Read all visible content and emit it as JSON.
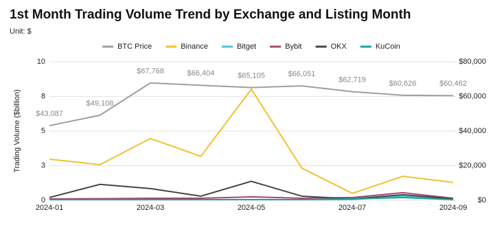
{
  "chart_data": {
    "type": "line",
    "title": "1st Month Trading Volume Trend by Exchange and Listing Month",
    "subtitle": "Unit: $",
    "y_label": "Trading Volume ($billion)",
    "categories": [
      "2024-01",
      null,
      "2024-03",
      null,
      "2024-05",
      null,
      "2024-07",
      null,
      "2024-09"
    ],
    "ylim": [
      0,
      10
    ],
    "yticks": [
      0,
      {
        "value": 2.5,
        "label": "3"
      },
      5,
      {
        "value": 7.5,
        "label": "8"
      },
      10
    ],
    "y2lim": [
      0,
      80000
    ],
    "y2ticks": [
      {
        "value": 0,
        "label": "$0"
      },
      {
        "value": 20000,
        "label": "$20,000"
      },
      {
        "value": 40000,
        "label": "$40,000"
      },
      {
        "value": 60000,
        "label": "$60,000"
      },
      {
        "value": 80000,
        "label": "$80,000"
      }
    ],
    "grid": true,
    "legend": "top",
    "series": [
      {
        "name": "BTC Price",
        "color": "#9e9e9e",
        "axis": "y2",
        "values": [
          43087,
          49108,
          67768,
          66404,
          65105,
          66051,
          62719,
          60626,
          60462
        ],
        "value_labels": [
          "$43,087",
          "$49,108",
          "$67,768",
          "$66,404",
          "$65,105",
          "$66,051",
          "$62,719",
          "$60,626",
          "$60,462"
        ]
      },
      {
        "name": "Binance",
        "color": "#f2c12e",
        "values": [
          2.97,
          2.57,
          4.46,
          3.17,
          8.02,
          2.33,
          0.5,
          1.73,
          1.29
        ]
      },
      {
        "name": "Bitget",
        "color": "#4cc3d9",
        "values": [
          0.05,
          0.05,
          0.05,
          0.05,
          0.05,
          0.05,
          0.05,
          0.3,
          0.05
        ]
      },
      {
        "name": "Bybit",
        "color": "#a8456f",
        "values": [
          0.1,
          0.12,
          0.15,
          0.15,
          0.25,
          0.15,
          0.2,
          0.55,
          0.15
        ]
      },
      {
        "name": "OKX",
        "color": "#444444",
        "values": [
          0.2,
          1.15,
          0.85,
          0.3,
          1.37,
          0.3,
          0.1,
          0.4,
          0.1
        ]
      },
      {
        "name": "KuCoin",
        "color": "#1aa39a",
        "values": [
          0.05,
          0.05,
          0.05,
          0.05,
          0.05,
          0.05,
          0.1,
          0.2,
          0.05
        ]
      }
    ]
  }
}
